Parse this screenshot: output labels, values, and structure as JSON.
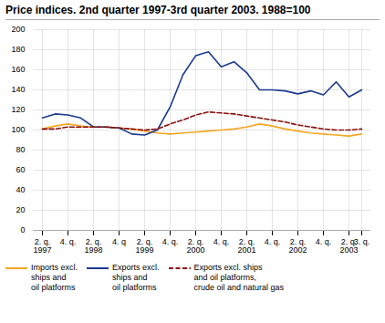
{
  "chart_data": {
    "type": "line",
    "title": "Price indices. 2nd quarter 1997-3rd quarter 2003. 1988=100",
    "categories": [
      "2. q.\n1997",
      null,
      "4. q.",
      null,
      "2. q.\n1998",
      null,
      "4. q",
      null,
      "2. q.\n1999",
      null,
      "4. q.",
      null,
      "2. q.\n2000",
      null,
      "4. q.",
      null,
      "2. q.\n2001",
      null,
      "4. q.",
      null,
      "2. q.\n2002",
      null,
      "4. q.",
      null,
      "2. q.\n2003",
      "3. q."
    ],
    "series": [
      {
        "name": "Imports excl.\nships and\noil platforms",
        "color": "#f5a623",
        "line_style": "solid",
        "values": [
          101,
          104,
          106,
          104,
          103,
          103,
          102,
          101,
          99,
          97,
          96,
          97,
          98,
          99,
          100,
          101,
          103,
          106,
          104,
          101,
          99,
          97,
          96,
          95,
          94,
          96
        ]
      },
      {
        "name": "Exports excl.\nships and\noil platforms",
        "color": "#1a3a8f",
        "line_style": "solid",
        "values": [
          112,
          116,
          115,
          112,
          103,
          103,
          102,
          96,
          95,
          100,
          123,
          155,
          174,
          178,
          163,
          168,
          157,
          140,
          140,
          139,
          136,
          139,
          135,
          148,
          133,
          140
        ]
      },
      {
        "name": "Exports excl. ships\nand oil platforms,\ncrude oil and natural gas",
        "color": "#8b1010",
        "line_style": "dashed",
        "values": [
          101,
          101,
          103,
          103,
          103,
          103,
          102,
          101,
          100,
          101,
          106,
          110,
          115,
          118,
          117,
          116,
          114,
          112,
          110,
          108,
          105,
          103,
          101,
          100,
          100,
          101
        ]
      }
    ],
    "ylim": [
      0,
      200
    ],
    "yticks": [
      0,
      20,
      40,
      60,
      80,
      100,
      120,
      140,
      160,
      180,
      200
    ],
    "grid": true,
    "legend": "bottom"
  }
}
